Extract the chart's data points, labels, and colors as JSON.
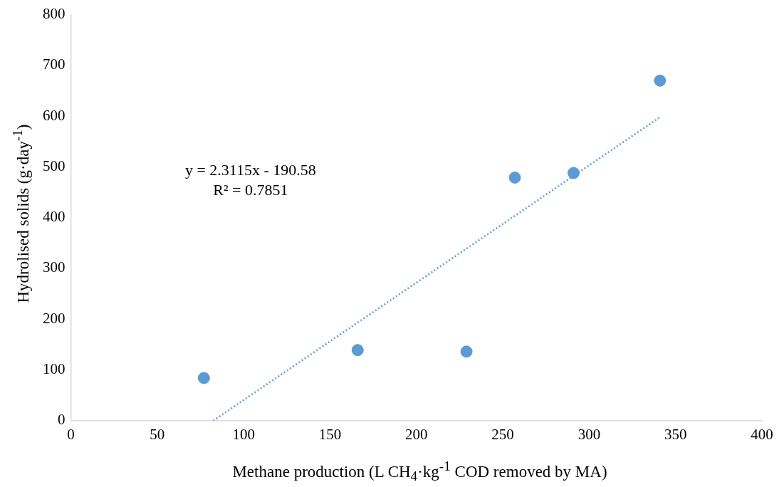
{
  "chart_data": {
    "type": "scatter",
    "xlabel": "Methane production (L CH$_{4}$·kg$^{-1}$ COD removed by MA)",
    "ylabel": "Hydrolised solids (g·day$^{-1}$)",
    "xlim": [
      0,
      400
    ],
    "xticks": [
      0,
      50,
      100,
      150,
      200,
      250,
      300,
      350,
      400
    ],
    "ylim": [
      0,
      800
    ],
    "yticks": [
      0,
      100,
      200,
      300,
      400,
      500,
      600,
      700,
      800
    ],
    "grid": false,
    "legend": false,
    "series": [
      {
        "type": "scatter",
        "color": "#5b9bd5",
        "marker": "circle",
        "x": [
          77,
          166,
          229,
          257,
          291,
          341
        ],
        "values": [
          84,
          139,
          136,
          479,
          488,
          670
        ]
      },
      {
        "type": "line",
        "color": "#5b9bd5",
        "marker": "none",
        "line_style": "dotted",
        "x": [
          82.45,
          341
        ],
        "values": [
          0,
          598
        ]
      }
    ],
    "annotations": [
      "y = 2.3115x - 190.58",
      "R² = 0.7851"
    ]
  }
}
